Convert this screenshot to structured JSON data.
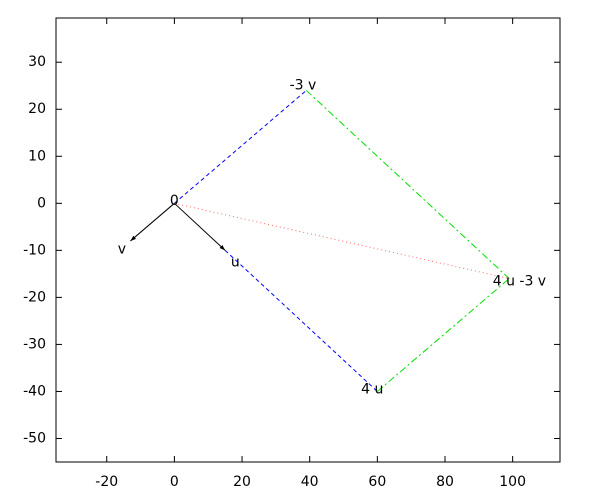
{
  "chart_data": {
    "type": "vector",
    "xlim": [
      -35,
      114
    ],
    "ylim": [
      -55,
      39.4
    ],
    "xticks": [
      -20,
      0,
      20,
      40,
      60,
      80,
      100
    ],
    "yticks": [
      -50,
      -40,
      -30,
      -20,
      -10,
      0,
      10,
      20,
      30
    ],
    "segments": [
      {
        "x": [
          0,
          15
        ],
        "y": [
          0,
          -10
        ],
        "color": "#000000",
        "dash": "solid",
        "arrow": true
      },
      {
        "x": [
          0,
          -13
        ],
        "y": [
          0,
          -8
        ],
        "color": "#000000",
        "dash": "solid",
        "arrow": true
      },
      {
        "x": [
          0,
          39
        ],
        "y": [
          0,
          24
        ],
        "color": "#0000ff",
        "dash": "dashed",
        "arrow": false
      },
      {
        "x": [
          15,
          60
        ],
        "y": [
          -10,
          -40
        ],
        "color": "#0000ff",
        "dash": "dashed",
        "arrow": false
      },
      {
        "x": [
          39,
          99
        ],
        "y": [
          24,
          -16
        ],
        "color": "#00dd00",
        "dash": "dashdot",
        "arrow": false
      },
      {
        "x": [
          60,
          99
        ],
        "y": [
          -40,
          -16
        ],
        "color": "#00dd00",
        "dash": "dashdot",
        "arrow": false
      },
      {
        "x": [
          0,
          99
        ],
        "y": [
          0,
          -16
        ],
        "color": "#ff6666",
        "dash": "dotted",
        "arrow": false
      }
    ],
    "labels": [
      {
        "text": "0",
        "x": 0,
        "y": 0.5
      },
      {
        "text": "v",
        "x": -15.5,
        "y": -9.8
      },
      {
        "text": "u",
        "x": 18,
        "y": -12.6
      },
      {
        "text": "-3 v",
        "x": 38,
        "y": 25
      },
      {
        "text": "4 u",
        "x": 58.5,
        "y": -39.6
      },
      {
        "text": "4 u -3 v",
        "x": 102,
        "y": -16.6
      }
    ]
  }
}
